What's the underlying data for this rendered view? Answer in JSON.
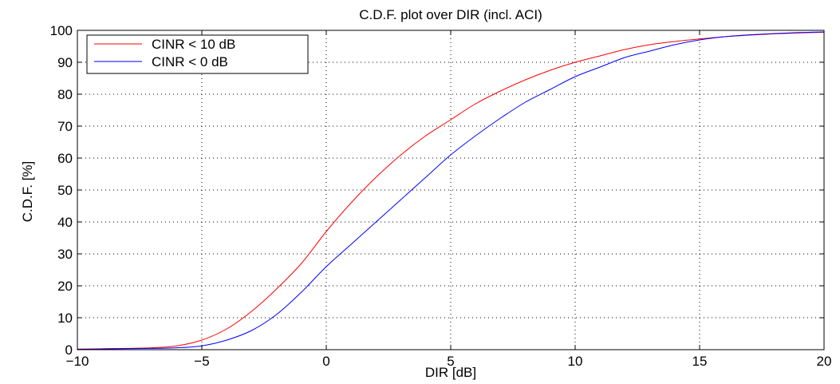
{
  "chart_data": {
    "type": "line",
    "title": "C.D.F. plot over DIR (incl. ACI)",
    "xlabel": "DIR [dB]",
    "ylabel": "C.D.F. [%]",
    "xlim": [
      -10,
      20
    ],
    "ylim": [
      0,
      100
    ],
    "xticks": [
      -10,
      -5,
      0,
      5,
      10,
      15,
      20
    ],
    "xtick_labels": [
      "−10",
      "−5",
      "0",
      "5",
      "10",
      "15",
      "20"
    ],
    "yticks": [
      0,
      10,
      20,
      30,
      40,
      50,
      60,
      70,
      80,
      90,
      100
    ],
    "ytick_labels": [
      "0",
      "10",
      "20",
      "30",
      "40",
      "50",
      "60",
      "70",
      "80",
      "90",
      "100"
    ],
    "grid": true,
    "legend_position": "top-left",
    "series": [
      {
        "name": "CINR < 10 dB",
        "color": "#ff0000",
        "x": [
          -10,
          -8,
          -7,
          -6,
          -5,
          -4,
          -3,
          -2,
          -1,
          0,
          1,
          2,
          3,
          4,
          5,
          6,
          7,
          8,
          9,
          10,
          11,
          12,
          13,
          14,
          15,
          16,
          17,
          18,
          19,
          20
        ],
        "y": [
          0.2,
          0.4,
          0.6,
          1.2,
          3,
          6.5,
          12,
          19,
          27,
          37,
          46,
          54,
          61,
          67,
          72,
          77,
          81,
          84.5,
          87.5,
          90,
          92,
          94,
          95.5,
          96.5,
          97.3,
          98,
          98.5,
          98.9,
          99.2,
          99.4
        ]
      },
      {
        "name": "CINR < 0 dB",
        "color": "#0000ff",
        "x": [
          -10,
          -8,
          -7,
          -6,
          -5,
          -4,
          -3,
          -2,
          -1,
          0,
          1,
          2,
          3,
          4,
          5,
          6,
          7,
          8,
          9,
          10,
          11,
          12,
          13,
          14,
          15,
          16,
          17,
          18,
          19,
          20
        ],
        "y": [
          0.1,
          0.3,
          0.4,
          0.6,
          1.2,
          3,
          6,
          11,
          18,
          26,
          33,
          40,
          47,
          54,
          61,
          67,
          72.5,
          77.5,
          81.5,
          85.5,
          88.5,
          91.5,
          93.5,
          95.5,
          97,
          98,
          98.6,
          99,
          99.3,
          99.5
        ]
      }
    ]
  }
}
